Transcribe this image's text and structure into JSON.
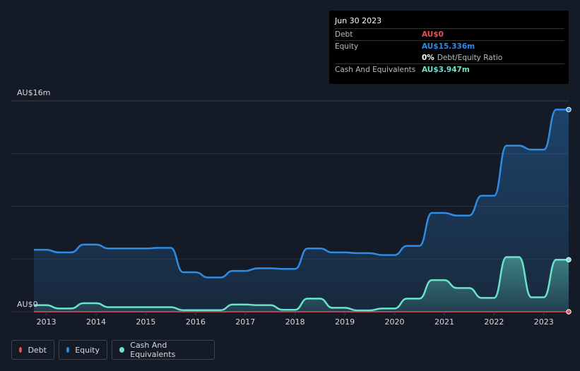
{
  "tooltip": {
    "date": "Jun 30 2023",
    "debt_label": "Debt",
    "debt_value": "AU$0",
    "equity_label": "Equity",
    "equity_value": "AU$15.336m",
    "ratio_value": "0%",
    "ratio_label": "Debt/Equity Ratio",
    "cash_label": "Cash And Equivalents",
    "cash_value": "AU$3.947m"
  },
  "legend": {
    "debt": "Debt",
    "equity": "Equity",
    "cash": "Cash And Equivalents"
  },
  "colors": {
    "debt": "#e4525d",
    "equity": "#2d8ce6",
    "cash": "#6ae3cb",
    "background": "#151b26"
  },
  "chart_data": {
    "type": "area",
    "ylabel_top": "AU$16m",
    "ylabel_bottom": "AU$0",
    "ylim": [
      0,
      16
    ],
    "xlim": [
      2012.75,
      2023.5
    ],
    "x_ticks": [
      "2013",
      "2014",
      "2015",
      "2016",
      "2017",
      "2018",
      "2019",
      "2020",
      "2021",
      "2022",
      "2023"
    ],
    "grid": true,
    "series": [
      {
        "name": "Equity",
        "key": "equity",
        "x": [
          2012.75,
          2013.0,
          2013.25,
          2013.5,
          2013.75,
          2014.0,
          2014.25,
          2014.5,
          2014.75,
          2015.0,
          2015.25,
          2015.5,
          2015.75,
          2016.0,
          2016.25,
          2016.5,
          2016.75,
          2017.0,
          2017.25,
          2017.5,
          2017.75,
          2018.0,
          2018.25,
          2018.5,
          2018.75,
          2019.0,
          2019.25,
          2019.5,
          2019.75,
          2020.0,
          2020.25,
          2020.5,
          2020.75,
          2021.0,
          2021.25,
          2021.5,
          2021.75,
          2022.0,
          2022.25,
          2022.5,
          2022.75,
          2023.0,
          2023.25,
          2023.5
        ],
        "values": [
          4.7,
          4.7,
          4.5,
          4.5,
          5.1,
          5.1,
          4.8,
          4.8,
          4.8,
          4.8,
          4.85,
          4.85,
          3.0,
          3.0,
          2.6,
          2.6,
          3.1,
          3.1,
          3.3,
          3.3,
          3.25,
          3.25,
          4.8,
          4.8,
          4.5,
          4.5,
          4.45,
          4.45,
          4.3,
          4.3,
          5.0,
          5.0,
          7.5,
          7.5,
          7.3,
          7.3,
          8.8,
          8.8,
          12.6,
          12.6,
          12.3,
          12.3,
          15.336,
          15.336
        ]
      },
      {
        "name": "Cash And Equivalents",
        "key": "cash",
        "x": [
          2012.75,
          2013.0,
          2013.25,
          2013.5,
          2013.75,
          2014.0,
          2014.25,
          2014.5,
          2014.75,
          2015.0,
          2015.25,
          2015.5,
          2015.75,
          2016.0,
          2016.25,
          2016.5,
          2016.75,
          2017.0,
          2017.25,
          2017.5,
          2017.75,
          2018.0,
          2018.25,
          2018.5,
          2018.75,
          2019.0,
          2019.25,
          2019.5,
          2019.75,
          2020.0,
          2020.25,
          2020.5,
          2020.75,
          2021.0,
          2021.25,
          2021.5,
          2021.75,
          2022.0,
          2022.25,
          2022.5,
          2022.75,
          2023.0,
          2023.25,
          2023.5
        ],
        "values": [
          0.5,
          0.5,
          0.25,
          0.25,
          0.65,
          0.65,
          0.35,
          0.35,
          0.35,
          0.35,
          0.35,
          0.35,
          0.12,
          0.12,
          0.12,
          0.12,
          0.55,
          0.55,
          0.5,
          0.5,
          0.15,
          0.15,
          1.0,
          1.0,
          0.3,
          0.3,
          0.1,
          0.1,
          0.25,
          0.25,
          1.0,
          1.0,
          2.4,
          2.4,
          1.8,
          1.8,
          1.05,
          1.05,
          4.15,
          4.15,
          1.1,
          1.1,
          3.947,
          3.947
        ]
      },
      {
        "name": "Debt",
        "key": "debt",
        "x": [
          2012.75,
          2023.5
        ],
        "values": [
          0,
          0
        ]
      }
    ]
  }
}
